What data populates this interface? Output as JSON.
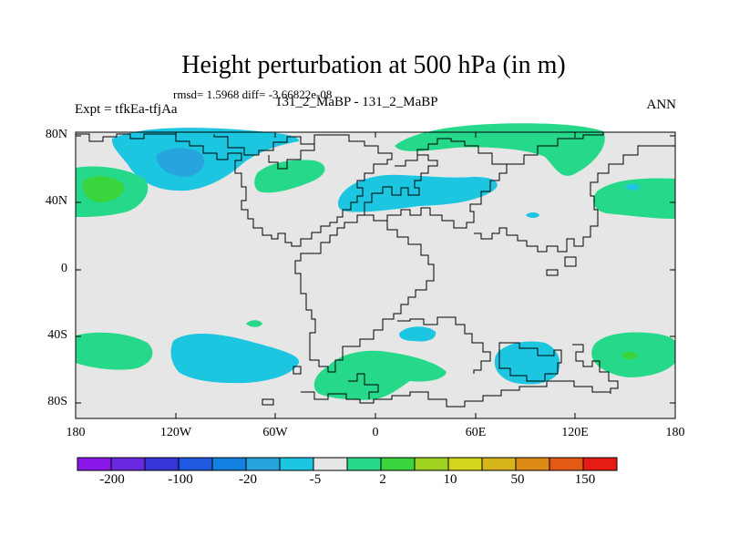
{
  "title": "Height perturbation at 500 hPa (in m)",
  "stats": "rmsd= 1.5968 diff= -3.66822e-08",
  "expt": "Expt = tfkEa-tfjAa",
  "cases": "131_2_MaBP - 131_2_MaBP",
  "season": "ANN",
  "lat_labels": [
    "80N",
    "40N",
    "0",
    "40S",
    "80S"
  ],
  "lon_labels": [
    "180",
    "120W",
    "60W",
    "0",
    "60E",
    "120E",
    "180"
  ],
  "colorbar": {
    "labels": [
      "-200",
      "-100",
      "-20",
      "-5",
      "2",
      "10",
      "50",
      "150"
    ],
    "colors": [
      "#8a18e8",
      "#6a28e0",
      "#3535d8",
      "#1f59e0",
      "#1180e0",
      "#27a4dd",
      "#1cc6e0",
      "#e6e6e6",
      "#26d98a",
      "#3ad43c",
      "#9ed421",
      "#d4d61c",
      "#d6b41a",
      "#de8a16",
      "#e45a14",
      "#e61c14"
    ]
  },
  "colors": {
    "land_bg": "#e6e6e6",
    "neg_light": "#1cc6e0",
    "neg_mid": "#27a4dd",
    "pos_light": "#26d98a",
    "pos_mid": "#3ad43c"
  }
}
